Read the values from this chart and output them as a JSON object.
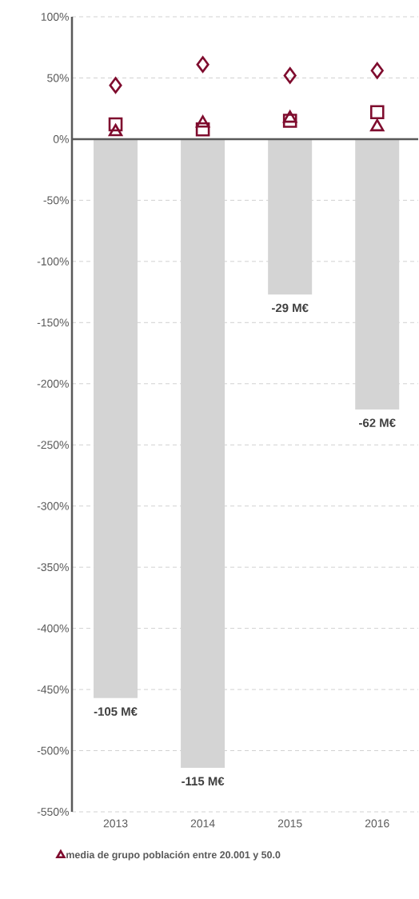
{
  "chart_data": {
    "type": "bar",
    "categories": [
      "2013",
      "2014",
      "2015",
      "2016"
    ],
    "series": [
      {
        "color": "#d4d4d4",
        "values": [
          -457,
          -514,
          -127,
          -221
        ]
      },
      {
        "type": "scatter",
        "marker": "diamond",
        "color": "#7f0c2e",
        "values": [
          44,
          61,
          52,
          56
        ]
      },
      {
        "type": "scatter",
        "marker": "square",
        "color": "#7f0c2e",
        "values": [
          12,
          8,
          15,
          22
        ]
      },
      {
        "type": "scatter",
        "marker": "triangle",
        "color": "#7f0c2e",
        "name": "media de grupo población entre 20.001 y 50.0",
        "values": [
          6,
          13,
          17,
          10
        ]
      }
    ],
    "ylim": [
      -550,
      100
    ],
    "yticks": [
      {
        "value": 100,
        "label": "100%"
      },
      {
        "value": 50,
        "label": "50%"
      },
      {
        "value": 0,
        "label": "0%"
      },
      {
        "value": -50,
        "label": "-50%"
      },
      {
        "value": -100,
        "label": "-100%"
      },
      {
        "value": -150,
        "label": "-150%"
      },
      {
        "value": -200,
        "label": "-200%"
      },
      {
        "value": -250,
        "label": "-250%"
      },
      {
        "value": -300,
        "label": "-300%"
      },
      {
        "value": -350,
        "label": "-350%"
      },
      {
        "value": -400,
        "label": "-400%"
      },
      {
        "value": -450,
        "label": "-450%"
      },
      {
        "value": -500,
        "label": "-500%"
      },
      {
        "value": -550,
        "label": "-550%"
      }
    ],
    "annotations": [
      {
        "text": "-105 M€",
        "x": "2013",
        "y": -457
      },
      {
        "text": "-115 M€",
        "x": "2014",
        "y": -514
      },
      {
        "text": "-29 M€",
        "x": "2015",
        "y": -127
      },
      {
        "text": "-62 M€",
        "x": "2016",
        "y": -221
      }
    ],
    "grid": "y",
    "legend": "bottom"
  }
}
